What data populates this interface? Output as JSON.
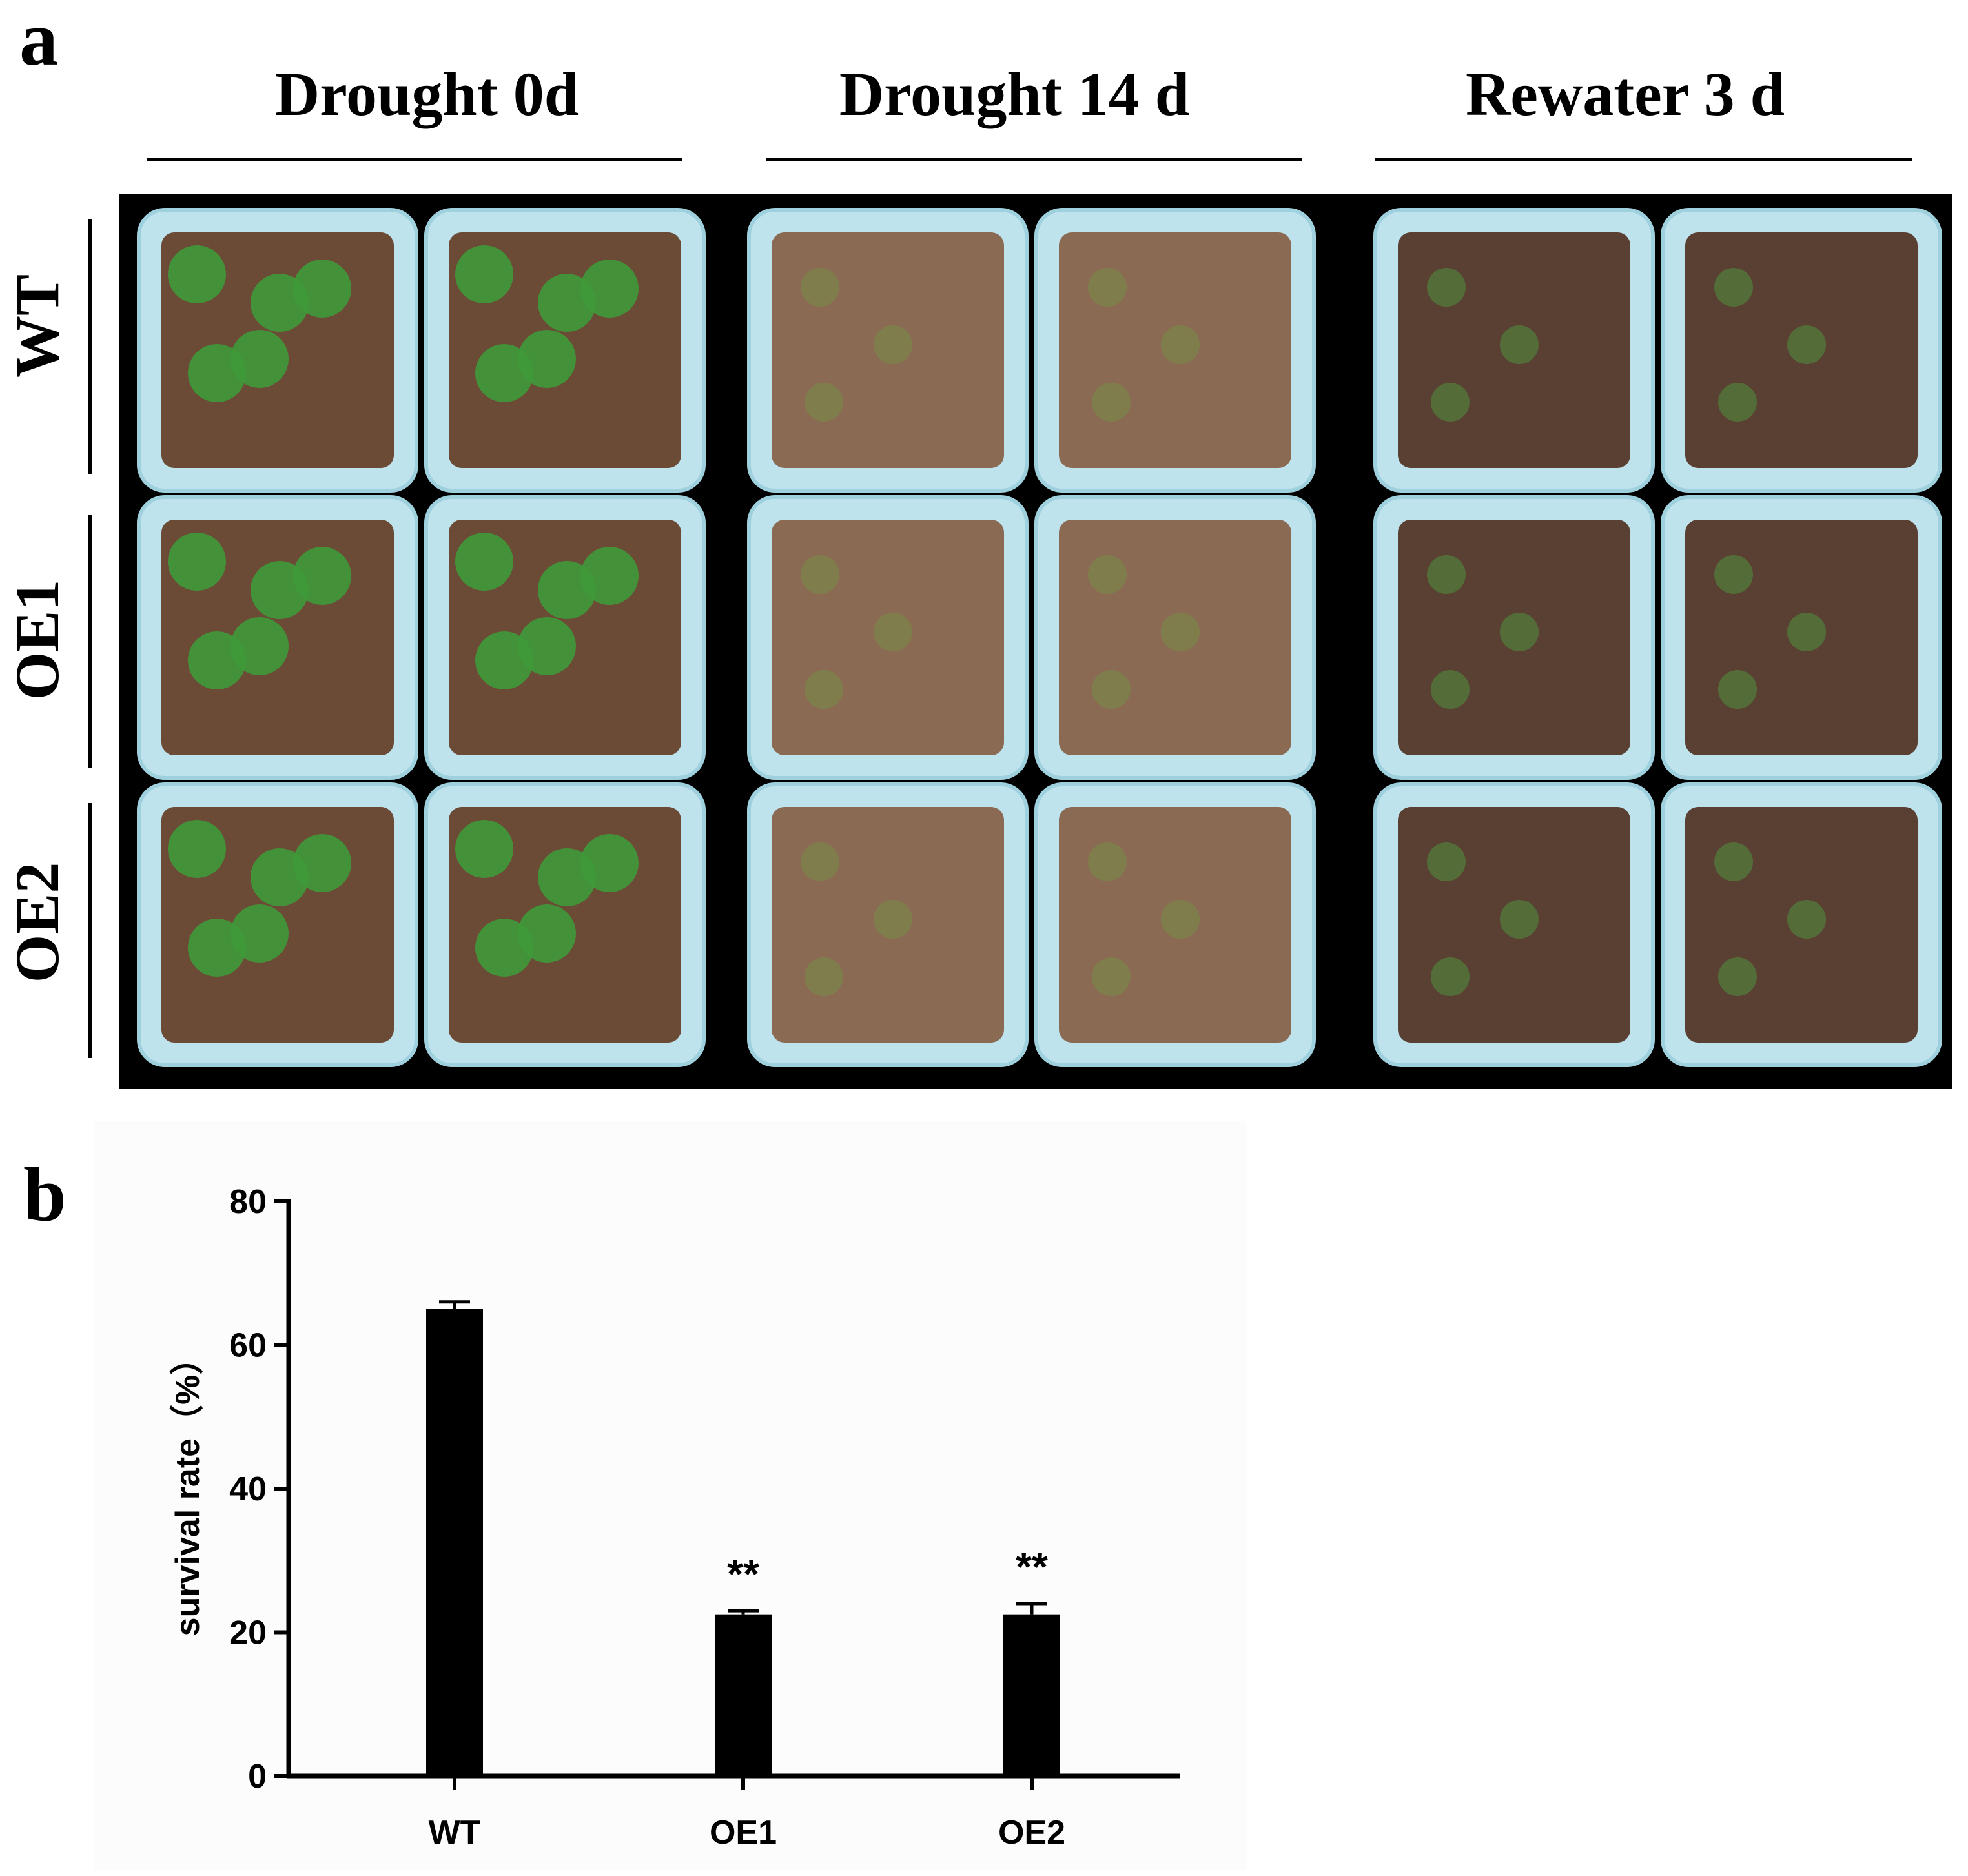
{
  "panel_labels": [
    "a",
    "b"
  ],
  "panel_a": {
    "columns": [
      "Drought 0d",
      "Drought 14 d",
      "Rewater 3 d"
    ],
    "rows": [
      "WT",
      "OE1",
      "OE2"
    ]
  },
  "chart_data": {
    "type": "bar",
    "ylabel": "survival rate（%）",
    "categories": [
      "WT",
      "OE1",
      "OE2"
    ],
    "values": [
      65,
      22.5,
      22.5
    ],
    "errors": [
      1,
      0.5,
      1.5
    ],
    "significance": [
      null,
      "**",
      "**"
    ],
    "color": "#000000",
    "ylim": [
      0,
      80
    ],
    "yticks": [
      0,
      20,
      40,
      60,
      80
    ]
  }
}
